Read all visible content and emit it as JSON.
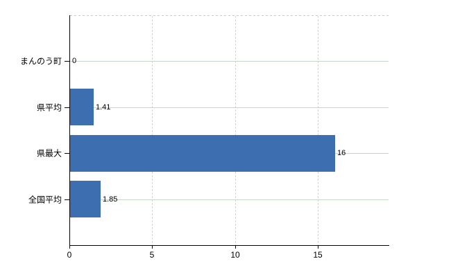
{
  "chart_data": {
    "type": "bar",
    "orientation": "horizontal",
    "title": "",
    "xlabel": "",
    "ylabel": "",
    "legend": "none",
    "grid": true,
    "categories": [
      "まんのう町",
      "県平均",
      "県最大",
      "全国平均"
    ],
    "values": [
      0,
      1.41,
      16,
      1.85
    ],
    "value_labels": [
      "0",
      "1.41",
      "16",
      "1.85"
    ],
    "x_ticks": [
      0,
      5,
      10,
      15
    ],
    "x_tick_labels": [
      "0",
      "5",
      "10",
      "15"
    ],
    "xlim": [
      0,
      19.27
    ],
    "colors": {
      "bar": "#3d6eb0",
      "axis": "#000000",
      "text": "#000000",
      "h_gridline": "#c9d4c9",
      "v_gridline": "#d7d1d5",
      "top_border": "#c9c9c9",
      "background": "#ffffff"
    }
  }
}
